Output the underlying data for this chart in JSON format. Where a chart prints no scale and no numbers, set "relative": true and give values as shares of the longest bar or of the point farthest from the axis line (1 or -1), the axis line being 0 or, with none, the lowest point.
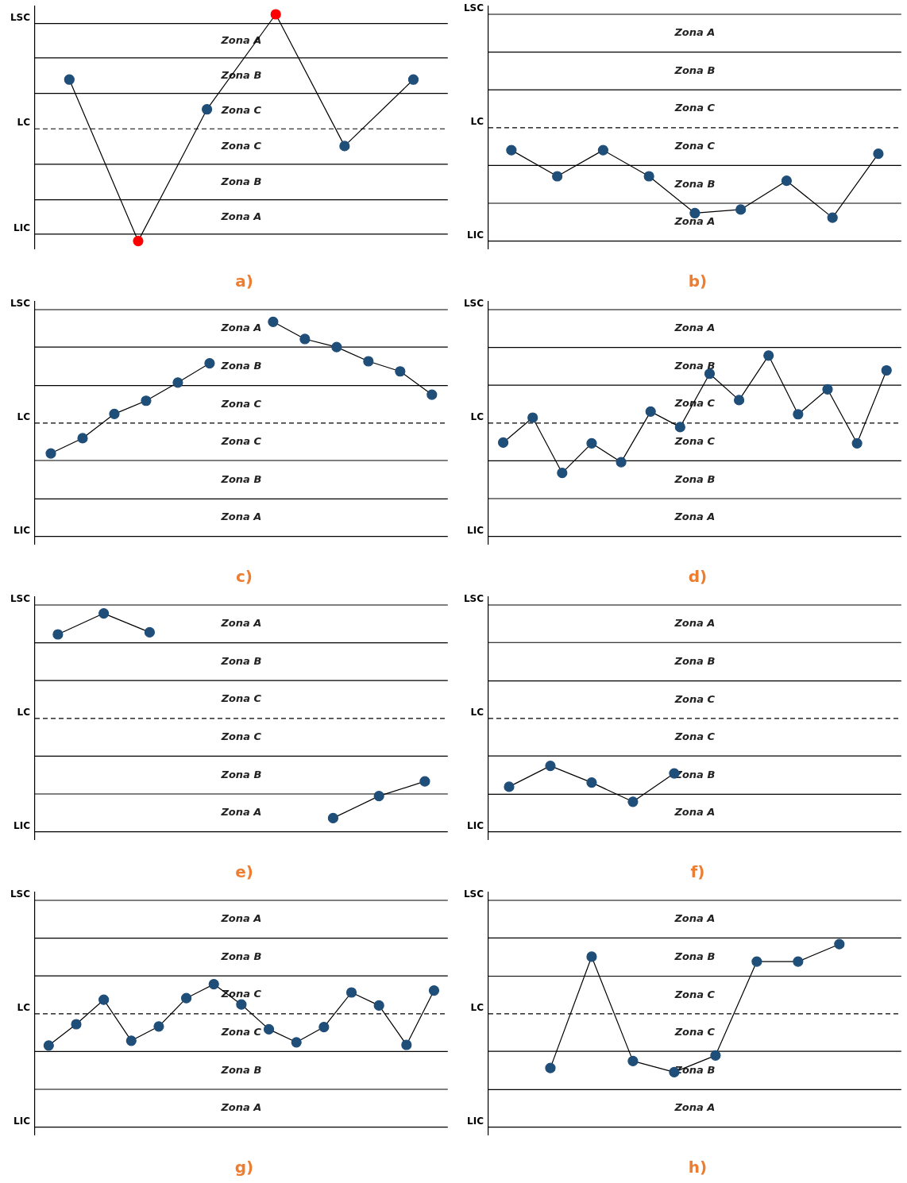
{
  "chart_data": [
    {
      "type": "line",
      "title": "a)",
      "relative": true,
      "categories": [
        null,
        null,
        null,
        null,
        null,
        null
      ],
      "series": [
        {
          "color": "#000000",
          "colors": [
            "#1f4e79",
            "#ff0000",
            "#1f4e79",
            "#ff0000",
            "#1f4e79",
            "#1f4e79"
          ],
          "values": [
            0.43,
            -0.98,
            0.17,
            1,
            -0.15,
            0.43
          ]
        }
      ],
      "marker": "circle",
      "ref_lines": [
        {
          "axis": "y",
          "value": 0.92,
          "label": "LSC"
        },
        {
          "axis": "y",
          "value": 0.62
        },
        {
          "axis": "y",
          "value": 0.31
        },
        {
          "axis": "y",
          "value": 0,
          "label": "LC",
          "line_style": "dashed"
        },
        {
          "axis": "y",
          "value": -0.31
        },
        {
          "axis": "y",
          "value": -0.62
        },
        {
          "axis": "y",
          "value": -0.92,
          "label": "LIC"
        }
      ],
      "annotations": [
        "Zona A",
        "Zona B",
        "Zona C",
        "Zona C",
        "Zona B",
        "Zona A"
      ]
    },
    {
      "type": "line",
      "title": "b)",
      "relative": true,
      "categories": [
        null,
        null,
        null,
        null,
        null,
        null,
        null,
        null,
        null
      ],
      "series": [
        {
          "color": "#000000",
          "colors": [
            "#1f4e79",
            "#1f4e79",
            "#1f4e79",
            "#1f4e79",
            "#1f4e79",
            "#1f4e79",
            "#1f4e79",
            "#1f4e79",
            "#1f4e79"
          ],
          "values": [
            -0.25,
            -0.54,
            -0.25,
            -0.54,
            -0.95,
            -0.91,
            -0.59,
            -1,
            -0.29
          ]
        }
      ],
      "marker": "circle",
      "ref_lines": [
        {
          "axis": "y",
          "value": 1.26,
          "label": "LSC"
        },
        {
          "axis": "y",
          "value": 0.84
        },
        {
          "axis": "y",
          "value": 0.42
        },
        {
          "axis": "y",
          "value": 0,
          "label": "LC",
          "line_style": "dashed"
        },
        {
          "axis": "y",
          "value": -0.42
        },
        {
          "axis": "y",
          "value": -0.84
        },
        {
          "axis": "y",
          "value": -1.26,
          "label": "LIC"
        }
      ],
      "annotations": [
        "Zona A",
        "Zona B",
        "Zona C",
        "Zona C",
        "Zona B",
        "Zona A"
      ]
    },
    {
      "type": "line",
      "title": "c)",
      "relative": true,
      "categories": [
        null,
        null,
        null,
        null,
        null,
        null,
        null,
        null,
        null,
        null,
        null,
        null,
        null
      ],
      "series": [
        {
          "color": "#000000",
          "colors": [
            "#1f4e79",
            "#1f4e79",
            "#1f4e79",
            "#1f4e79",
            "#1f4e79",
            "#1f4e79",
            null,
            null,
            null,
            null,
            null,
            null,
            null
          ],
          "values": [
            -0.3,
            -0.15,
            0.09,
            0.22,
            0.4,
            0.59,
            null,
            null,
            null,
            null,
            null,
            null,
            null
          ]
        },
        {
          "color": "#000000",
          "colors": [
            null,
            null,
            null,
            null,
            null,
            null,
            null,
            "#1f4e79",
            "#1f4e79",
            "#1f4e79",
            "#1f4e79",
            "#1f4e79",
            "#1f4e79"
          ],
          "values": [
            null,
            null,
            null,
            null,
            null,
            null,
            null,
            1,
            0.83,
            0.75,
            0.61,
            0.51,
            0.28
          ]
        }
      ],
      "marker": "circle",
      "ref_lines": [
        {
          "axis": "y",
          "value": 1.12,
          "label": "LSC"
        },
        {
          "axis": "y",
          "value": 0.75
        },
        {
          "axis": "y",
          "value": 0.37
        },
        {
          "axis": "y",
          "value": 0,
          "label": "LC",
          "line_style": "dashed"
        },
        {
          "axis": "y",
          "value": -0.37
        },
        {
          "axis": "y",
          "value": -0.75
        },
        {
          "axis": "y",
          "value": -1.12,
          "label": "LIC"
        }
      ],
      "annotations": [
        "Zona A",
        "Zona B",
        "Zona C",
        "Zona C",
        "Zona B",
        "Zona A"
      ]
    },
    {
      "type": "line",
      "title": "d)",
      "relative": true,
      "categories": [
        null,
        null,
        null,
        null,
        null,
        null,
        null,
        null,
        null,
        null,
        null,
        null,
        null,
        null
      ],
      "series": [
        {
          "color": "#000000",
          "colors": [
            "#1f4e79",
            "#1f4e79",
            "#1f4e79",
            "#1f4e79",
            "#1f4e79",
            "#1f4e79",
            "#1f4e79",
            "#1f4e79",
            "#1f4e79",
            "#1f4e79",
            "#1f4e79",
            "#1f4e79",
            "#1f4e79",
            "#1f4e79"
          ],
          "values": [
            -0.29,
            0.08,
            -0.74,
            -0.3,
            -0.58,
            0.17,
            -0.06,
            0.73,
            0.34,
            1,
            0.13,
            0.5,
            -0.3,
            0.78
          ]
        }
      ],
      "marker": "circle",
      "ref_lines": [
        {
          "axis": "y",
          "value": 1.68,
          "label": "LSC"
        },
        {
          "axis": "y",
          "value": 1.12
        },
        {
          "axis": "y",
          "value": 0.56
        },
        {
          "axis": "y",
          "value": 0,
          "label": "LC",
          "line_style": "dashed"
        },
        {
          "axis": "y",
          "value": -0.56
        },
        {
          "axis": "y",
          "value": -1.12
        },
        {
          "axis": "y",
          "value": -1.68,
          "label": "LIC"
        }
      ],
      "annotations": [
        "Zona A",
        "Zona B",
        "Zona C",
        "Zona C",
        "Zona B",
        "Zona A"
      ]
    },
    {
      "type": "line",
      "title": "e)",
      "relative": true,
      "categories": [
        null,
        null,
        null,
        null,
        null,
        null,
        null,
        null,
        null
      ],
      "series": [
        {
          "color": "#000000",
          "colors": [
            "#1f4e79",
            "#1f4e79",
            "#1f4e79",
            null,
            null,
            null,
            null,
            null,
            null
          ],
          "values": [
            0.8,
            1,
            0.82,
            null,
            null,
            null,
            null,
            null,
            null
          ]
        },
        {
          "color": "#000000",
          "colors": [
            null,
            null,
            null,
            null,
            null,
            null,
            "#1f4e79",
            "#1f4e79",
            "#1f4e79"
          ],
          "values": [
            null,
            null,
            null,
            null,
            null,
            null,
            -0.95,
            -0.74,
            -0.6
          ]
        }
      ],
      "marker": "circle",
      "ref_lines": [
        {
          "axis": "y",
          "value": 1.08,
          "label": "LSC"
        },
        {
          "axis": "y",
          "value": 0.72
        },
        {
          "axis": "y",
          "value": 0.36
        },
        {
          "axis": "y",
          "value": 0,
          "label": "LC",
          "line_style": "dashed"
        },
        {
          "axis": "y",
          "value": -0.36
        },
        {
          "axis": "y",
          "value": -0.72
        },
        {
          "axis": "y",
          "value": -1.08,
          "label": "LIC"
        }
      ],
      "annotations": [
        "Zona A",
        "Zona B",
        "Zona C",
        "Zona C",
        "Zona B",
        "Zona A"
      ]
    },
    {
      "type": "line",
      "title": "f)",
      "relative": true,
      "categories": [
        null,
        null,
        null,
        null,
        null,
        null,
        null,
        null,
        null,
        null
      ],
      "series": [
        {
          "color": "#000000",
          "colors": [
            "#1f4e79",
            "#1f4e79",
            "#1f4e79",
            "#1f4e79",
            "#1f4e79",
            null,
            null,
            null,
            null,
            null
          ],
          "values": [
            -0.82,
            -0.57,
            -0.77,
            -1,
            -0.66,
            null,
            null,
            null,
            null,
            null
          ]
        }
      ],
      "marker": "circle",
      "ref_lines": [
        {
          "axis": "y",
          "value": 1.36,
          "label": "LSC"
        },
        {
          "axis": "y",
          "value": 0.91
        },
        {
          "axis": "y",
          "value": 0.45
        },
        {
          "axis": "y",
          "value": 0,
          "label": "LC",
          "line_style": "dashed"
        },
        {
          "axis": "y",
          "value": -0.45
        },
        {
          "axis": "y",
          "value": -0.91
        },
        {
          "axis": "y",
          "value": -1.36,
          "label": "LIC"
        }
      ],
      "annotations": [
        "Zona A",
        "Zona B",
        "Zona C",
        "Zona C",
        "Zona B",
        "Zona A"
      ]
    },
    {
      "type": "line",
      "title": "g)",
      "relative": true,
      "categories": [
        null,
        null,
        null,
        null,
        null,
        null,
        null,
        null,
        null,
        null,
        null,
        null,
        null,
        null,
        null
      ],
      "series": [
        {
          "color": "#000000",
          "colors": [
            "#1f4e79",
            "#1f4e79",
            "#1f4e79",
            "#1f4e79",
            "#1f4e79",
            "#1f4e79",
            "#1f4e79",
            "#1f4e79",
            "#1f4e79",
            "#1f4e79",
            "#1f4e79",
            "#1f4e79",
            "#1f4e79",
            "#1f4e79",
            "#1f4e79"
          ],
          "values": [
            -1,
            -0.33,
            0.44,
            -0.85,
            -0.4,
            0.49,
            0.93,
            0.29,
            -0.49,
            -0.9,
            -0.42,
            0.67,
            0.26,
            -0.98,
            0.73
          ]
        }
      ],
      "marker": "circle",
      "ref_lines": [
        {
          "axis": "y",
          "value": 3.57,
          "label": "LSC"
        },
        {
          "axis": "y",
          "value": 2.38
        },
        {
          "axis": "y",
          "value": 1.19
        },
        {
          "axis": "y",
          "value": 0,
          "label": "LC",
          "line_style": "dashed"
        },
        {
          "axis": "y",
          "value": -1.19
        },
        {
          "axis": "y",
          "value": -2.38
        },
        {
          "axis": "y",
          "value": -3.57,
          "label": "LIC"
        }
      ],
      "annotations": [
        "Zona A",
        "Zona B",
        "Zona C",
        "Zona C",
        "Zona B",
        "Zona A"
      ]
    },
    {
      "type": "line",
      "title": "h)",
      "relative": true,
      "categories": [
        null,
        null,
        null,
        null,
        null,
        null,
        null,
        null,
        null,
        null
      ],
      "series": [
        {
          "color": "#000000",
          "colors": [
            null,
            "#1f4e79",
            "#1f4e79",
            "#1f4e79",
            "#1f4e79",
            "#1f4e79",
            "#1f4e79",
            "#1f4e79",
            "#1f4e79",
            null
          ],
          "values": [
            null,
            -0.78,
            0.82,
            -0.68,
            -0.84,
            -0.6,
            0.75,
            0.75,
            1,
            null
          ]
        }
      ],
      "marker": "circle",
      "ref_lines": [
        {
          "axis": "y",
          "value": 1.63,
          "label": "LSC"
        },
        {
          "axis": "y",
          "value": 1.09
        },
        {
          "axis": "y",
          "value": 0.54
        },
        {
          "axis": "y",
          "value": 0,
          "label": "LC",
          "line_style": "dashed"
        },
        {
          "axis": "y",
          "value": -0.54
        },
        {
          "axis": "y",
          "value": -1.09
        },
        {
          "axis": "y",
          "value": -1.63,
          "label": "LIC"
        }
      ],
      "annotations": [
        "Zona A",
        "Zona B",
        "Zona C",
        "Zona C",
        "Zona B",
        "Zona A"
      ]
    }
  ]
}
